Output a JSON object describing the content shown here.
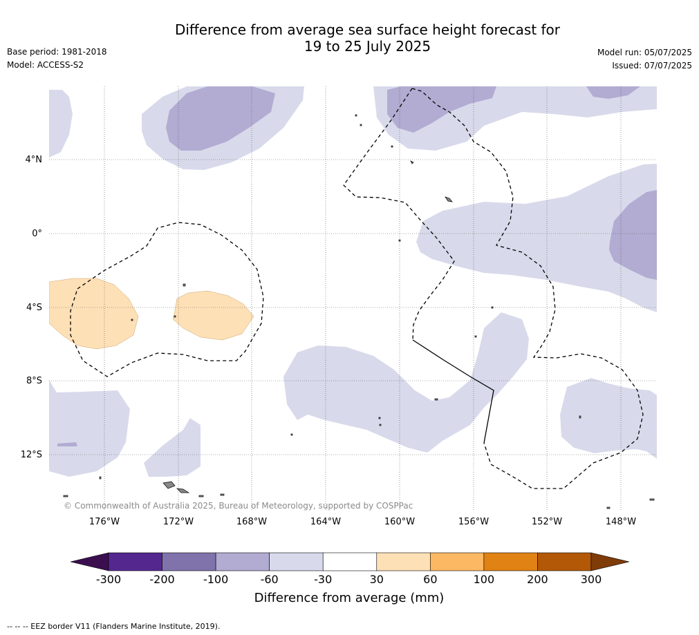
{
  "title_line1": "Difference from average sea surface height forecast for",
  "title_line2": "19 to 25 July 2025",
  "base_period": "Base period: 1981-2018",
  "model": "Model: ACCESS-S2",
  "model_run": "Model run: 05/07/2025",
  "issued": "Issued: 07/07/2025",
  "lat_labels": [
    "4°N",
    "0°",
    "4°S",
    "8°S",
    "12°S"
  ],
  "lon_labels": [
    "176°W",
    "172°W",
    "168°W",
    "164°W",
    "160°W",
    "156°W",
    "152°W",
    "148°W"
  ],
  "copyright": "© Commonwealth of Australia 2025, Bureau of Meteorology, supported by COSPPac",
  "colorbar": {
    "title": "Difference from average (mm)",
    "ticks": [
      "-300",
      "-200",
      "-100",
      "-60",
      "-30",
      "30",
      "60",
      "100",
      "200",
      "300"
    ],
    "colors": [
      "#3b0f4f",
      "#54278f",
      "#8073ac",
      "#b2abd2",
      "#d8daeb",
      "#ffffff",
      "#fee0b6",
      "#fdb863",
      "#e08214",
      "#b35806",
      "#7f3b08"
    ]
  },
  "legend_note": "--  --  -- EEZ border V11 (Flanders Marine Institute, 2019)."
}
